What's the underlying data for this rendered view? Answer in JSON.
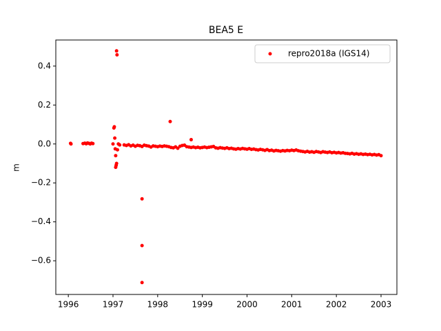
{
  "chart_data": {
    "type": "scatter",
    "title": "BEA5 E",
    "y_label": "m",
    "xlim": [
      1995.72,
      2003.355
    ],
    "ylim": [
      -0.773,
      0.534
    ],
    "xticks": [
      1996,
      1997,
      1998,
      1999,
      2000,
      2001,
      2002,
      2003
    ],
    "yticks": [
      0.4,
      0.2,
      {
        "value": 0,
        "label": "0.0"
      },
      {
        "value": -0.2,
        "label": "−0.2"
      },
      {
        "value": -0.4,
        "label": "−0.4"
      },
      {
        "value": -0.6,
        "label": "−0.6"
      }
    ],
    "legend": "upper right",
    "series": [
      {
        "name": "repro2018a (IGS14)",
        "color": "#ff0000",
        "x": [
          1996.05,
          1996.06,
          1996.33,
          1996.37,
          1996.4,
          1996.43,
          1996.46,
          1996.49,
          1996.52,
          1996.55,
          1997.0,
          1997.02,
          1997.03,
          1997.04,
          1997.05,
          1997.06,
          1997.06,
          1997.07,
          1997.08,
          1997.08,
          1997.09,
          1997.1,
          1997.12,
          1997.15,
          1997.65,
          1997.65,
          1997.65,
          1998.28,
          1998.75,
          1997.25,
          1997.3,
          1997.35,
          1997.4,
          1997.45,
          1997.5,
          1997.55,
          1997.6,
          1997.65,
          1997.7,
          1997.75,
          1997.8,
          1997.85,
          1997.9,
          1997.95,
          1998.0,
          1998.05,
          1998.1,
          1998.15,
          1998.2,
          1998.25,
          1998.3,
          1998.35,
          1998.4,
          1998.45,
          1998.5,
          1998.55,
          1998.6,
          1998.65,
          1998.7,
          1998.75,
          1998.8,
          1998.85,
          1998.9,
          1998.95,
          1999.0,
          1999.05,
          1999.1,
          1999.15,
          1999.2,
          1999.25,
          1999.3,
          1999.35,
          1999.4,
          1999.45,
          1999.5,
          1999.55,
          1999.6,
          1999.65,
          1999.7,
          1999.75,
          1999.8,
          1999.85,
          1999.9,
          1999.95,
          2000.0,
          2000.05,
          2000.1,
          2000.15,
          2000.2,
          2000.25,
          2000.3,
          2000.35,
          2000.4,
          2000.45,
          2000.5,
          2000.55,
          2000.6,
          2000.65,
          2000.7,
          2000.75,
          2000.8,
          2000.85,
          2000.9,
          2000.95,
          2001.0,
          2001.05,
          2001.1,
          2001.15,
          2001.2,
          2001.25,
          2001.3,
          2001.35,
          2001.4,
          2001.45,
          2001.5,
          2001.55,
          2001.6,
          2001.65,
          2001.7,
          2001.75,
          2001.8,
          2001.85,
          2001.9,
          2001.95,
          2002.0,
          2002.05,
          2002.1,
          2002.15,
          2002.2,
          2002.25,
          2002.3,
          2002.35,
          2002.4,
          2002.45,
          2002.5,
          2002.55,
          2002.6,
          2002.65,
          2002.7,
          2002.75,
          2002.8,
          2002.85,
          2002.9,
          2002.95,
          2003.0
        ],
        "values": [
          0.003,
          0.0,
          0.002,
          0.004,
          0.001,
          0.005,
          0.003,
          0.0,
          0.004,
          0.002,
          0.0,
          0.082,
          0.088,
          0.03,
          -0.025,
          -0.06,
          -0.12,
          -0.11,
          -0.1,
          0.478,
          0.458,
          -0.03,
          0.0,
          -0.005,
          -0.282,
          -0.522,
          -0.712,
          0.115,
          0.022,
          -0.005,
          -0.008,
          -0.004,
          -0.01,
          -0.006,
          -0.012,
          -0.007,
          -0.009,
          -0.013,
          -0.006,
          -0.009,
          -0.011,
          -0.016,
          -0.01,
          -0.012,
          -0.014,
          -0.011,
          -0.013,
          -0.01,
          -0.012,
          -0.014,
          -0.018,
          -0.02,
          -0.015,
          -0.022,
          -0.012,
          -0.008,
          -0.006,
          -0.014,
          -0.016,
          -0.018,
          -0.016,
          -0.019,
          -0.017,
          -0.02,
          -0.018,
          -0.016,
          -0.019,
          -0.017,
          -0.015,
          -0.013,
          -0.02,
          -0.022,
          -0.019,
          -0.021,
          -0.023,
          -0.02,
          -0.024,
          -0.022,
          -0.025,
          -0.027,
          -0.024,
          -0.026,
          -0.023,
          -0.025,
          -0.027,
          -0.024,
          -0.028,
          -0.026,
          -0.029,
          -0.031,
          -0.028,
          -0.03,
          -0.033,
          -0.029,
          -0.034,
          -0.032,
          -0.036,
          -0.033,
          -0.035,
          -0.037,
          -0.034,
          -0.036,
          -0.033,
          -0.035,
          -0.032,
          -0.034,
          -0.031,
          -0.035,
          -0.037,
          -0.039,
          -0.041,
          -0.038,
          -0.042,
          -0.04,
          -0.043,
          -0.039,
          -0.041,
          -0.044,
          -0.04,
          -0.042,
          -0.044,
          -0.041,
          -0.045,
          -0.043,
          -0.046,
          -0.044,
          -0.047,
          -0.045,
          -0.048,
          -0.049,
          -0.051,
          -0.048,
          -0.052,
          -0.05,
          -0.053,
          -0.051,
          -0.054,
          -0.052,
          -0.055,
          -0.053,
          -0.056,
          -0.054,
          -0.057,
          -0.055,
          -0.06
        ]
      }
    ]
  }
}
